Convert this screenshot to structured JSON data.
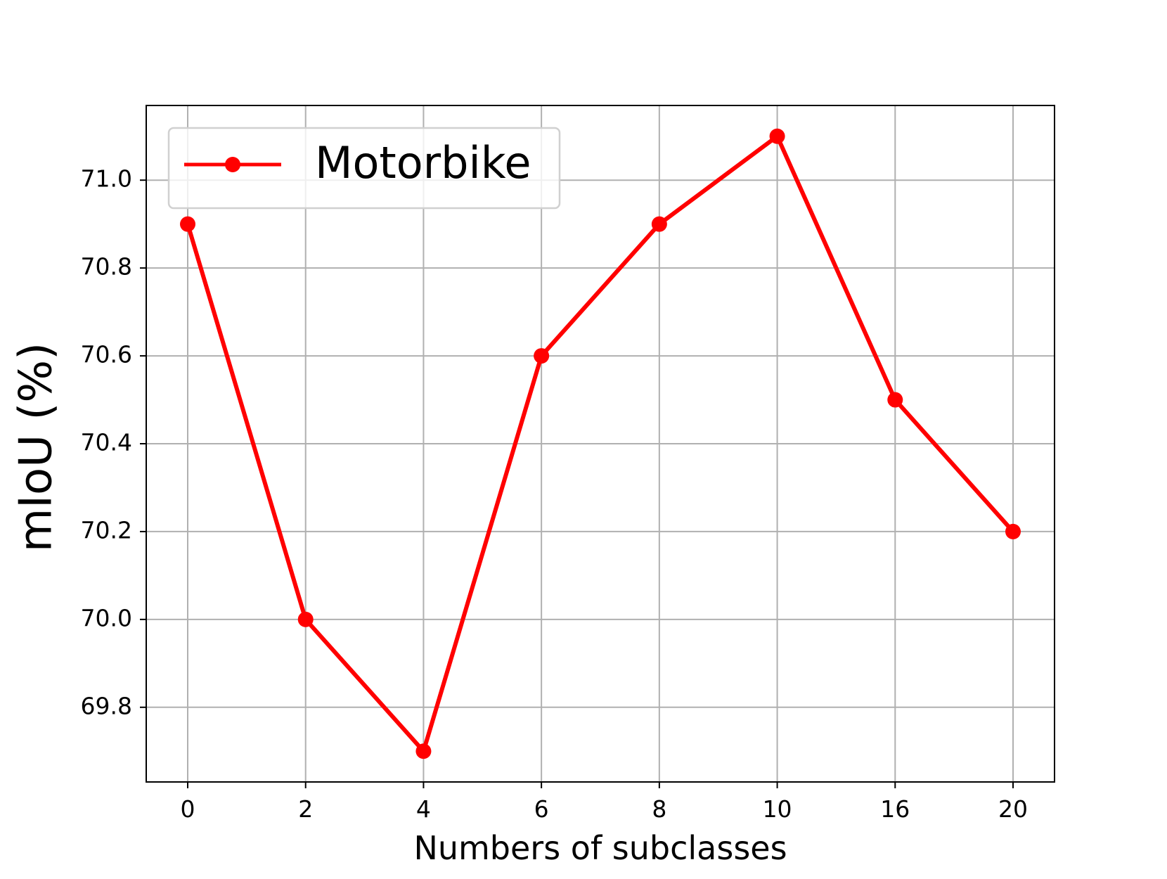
{
  "chart_data": {
    "type": "line",
    "xlabel": "Numbers of subclasses",
    "ylabel": "mIoU (%)",
    "categories": [
      "0",
      "2",
      "4",
      "6",
      "8",
      "10",
      "16",
      "20"
    ],
    "series": [
      {
        "name": "Motorbike",
        "values": [
          70.9,
          70.0,
          69.7,
          70.6,
          70.9,
          71.1,
          70.5,
          70.2
        ],
        "color": "#ff0000"
      }
    ],
    "yticks": [
      "69.8",
      "70.0",
      "70.2",
      "70.4",
      "70.6",
      "70.8",
      "71.0"
    ],
    "ylim": [
      69.63,
      71.17
    ],
    "grid": true,
    "legend_position": "top-left",
    "marker": "circle"
  }
}
